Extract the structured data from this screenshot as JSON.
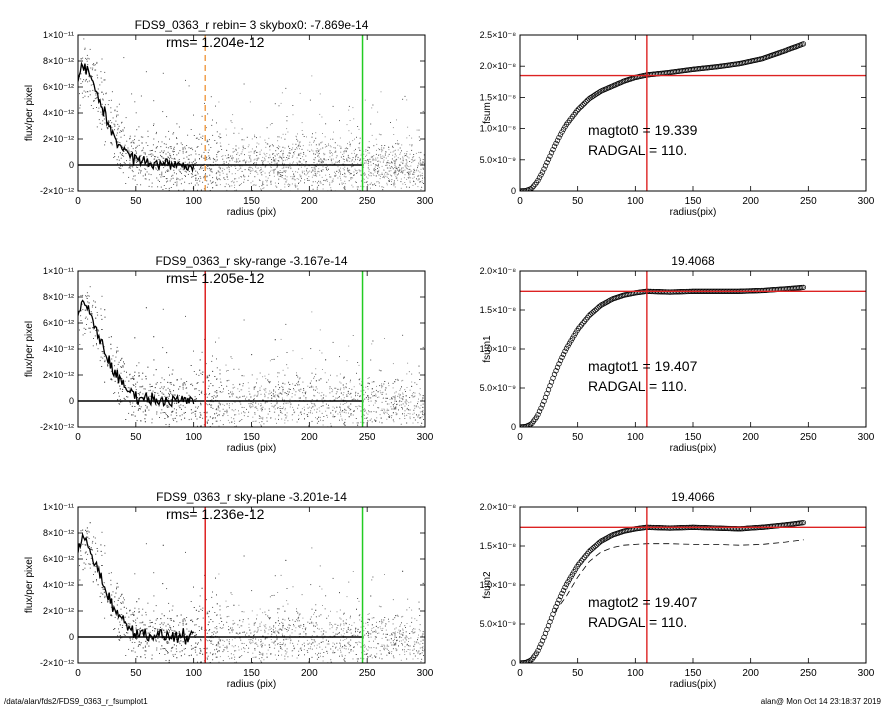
{
  "footer": {
    "left": "/data/alan/fds2/FDS9_0363_r_fsumplot1",
    "right": "alan@  Mon Oct 14 23:18:37 2019"
  },
  "colors": {
    "orange": "#f0a050",
    "green": "#22cc22",
    "red": "#dd2222",
    "scatter": "#555555",
    "scatter_light": "#999999",
    "profile": "#000000"
  },
  "chart_data": [
    {
      "id": "profile1",
      "type": "scatter",
      "title": "FDS9_0363_r rebin= 3    skybox0: -7.869e-14",
      "annotation": "rms= 1.204e-12",
      "xlabel": "radius (pix)",
      "ylabel": "flux/per pixel",
      "xlim": [
        0,
        300
      ],
      "ylim": [
        -2e-12,
        1e-11
      ],
      "xticks": [
        "0",
        "50",
        "100",
        "150",
        "200",
        "250",
        "300"
      ],
      "yticks": [
        "-2×10⁻¹²",
        "0",
        "2×10⁻¹²",
        "4×10⁻¹²",
        "6×10⁻¹²",
        "8×10⁻¹²",
        "1×10⁻¹¹"
      ],
      "vlines": [
        {
          "x": 110,
          "color": "orange",
          "style": "dashed"
        },
        {
          "x": 246,
          "color": "green",
          "style": "solid"
        }
      ],
      "hline": 0,
      "profile_x": [
        0,
        3,
        6,
        10,
        15,
        20,
        25,
        30,
        35,
        40,
        45,
        50,
        60,
        70,
        80,
        90,
        100,
        120,
        150,
        200,
        246
      ],
      "profile_y": [
        6.5e-12,
        7.5e-12,
        7.6e-12,
        6.8e-12,
        5.8e-12,
        4.6e-12,
        3.5e-12,
        2.5e-12,
        1.7e-12,
        1.1e-12,
        7e-13,
        4e-13,
        2e-13,
        1e-13,
        5e-14,
        0,
        0,
        0,
        0,
        0,
        0
      ]
    },
    {
      "id": "cum1",
      "type": "line",
      "title": "",
      "ylabel": "fsum",
      "xlabel": "radius(pix)",
      "xlim": [
        0,
        300
      ],
      "ylim": [
        0,
        2.5e-08
      ],
      "xticks": [
        "0",
        "50",
        "100",
        "150",
        "200",
        "250",
        "300"
      ],
      "yticks": [
        "0",
        "5.0×10⁻⁹",
        "1.0×10⁻⁸",
        "1.5×10⁻⁸",
        "2.0×10⁻⁸",
        "2.5×10⁻⁸"
      ],
      "annotations": [
        "magtot0 =  19.339",
        "RADGAL =    110."
      ],
      "vline": 110,
      "hline": 1.85e-08,
      "x": [
        0,
        5,
        10,
        15,
        20,
        25,
        30,
        35,
        40,
        50,
        60,
        70,
        80,
        90,
        100,
        110,
        130,
        150,
        170,
        190,
        210,
        230,
        246
      ],
      "y": [
        0,
        5e-11,
        4e-10,
        1.5e-09,
        3.2e-09,
        5.2e-09,
        7.2e-09,
        9e-09,
        1.06e-08,
        1.3e-08,
        1.48e-08,
        1.6e-08,
        1.68e-08,
        1.76e-08,
        1.82e-08,
        1.86e-08,
        1.9e-08,
        1.95e-08,
        1.99e-08,
        2.04e-08,
        2.12e-08,
        2.25e-08,
        2.36e-08
      ]
    },
    {
      "id": "profile2",
      "type": "scatter",
      "title": "FDS9_0363_r sky-range -3.167e-14",
      "annotation": "rms= 1.205e-12",
      "xlabel": "radius (pix)",
      "ylabel": "flux/per pixel",
      "xlim": [
        0,
        300
      ],
      "ylim": [
        -2e-12,
        1e-11
      ],
      "xticks": [
        "0",
        "50",
        "100",
        "150",
        "200",
        "250",
        "300"
      ],
      "yticks": [
        "-2×10⁻¹²",
        "0",
        "2×10⁻¹²",
        "4×10⁻¹²",
        "6×10⁻¹²",
        "8×10⁻¹²",
        "1×10⁻¹¹"
      ],
      "vlines": [
        {
          "x": 110,
          "color": "red",
          "style": "solid"
        },
        {
          "x": 246,
          "color": "green",
          "style": "solid"
        }
      ],
      "hline": 0,
      "profile_x": [
        0,
        3,
        6,
        10,
        15,
        20,
        25,
        30,
        35,
        40,
        45,
        50,
        60,
        70,
        80,
        90,
        100,
        120,
        150,
        200,
        246
      ],
      "profile_y": [
        6.5e-12,
        7.4e-12,
        7.5e-12,
        6.7e-12,
        5.7e-12,
        4.5e-12,
        3.4e-12,
        2.5e-12,
        1.7e-12,
        1.1e-12,
        7e-13,
        4e-13,
        2e-13,
        1e-13,
        5e-14,
        0,
        0,
        0,
        0,
        0,
        0
      ]
    },
    {
      "id": "cum2",
      "type": "line",
      "title": "19.4068",
      "ylabel": "fsum1",
      "xlabel": "radius(pix)",
      "xlim": [
        0,
        300
      ],
      "ylim": [
        0,
        2e-08
      ],
      "xticks": [
        "0",
        "50",
        "100",
        "150",
        "200",
        "250",
        "300"
      ],
      "yticks": [
        "0",
        "5.0×10⁻⁹",
        "1.0×10⁻⁸",
        "1.5×10⁻⁸",
        "2.0×10⁻⁸"
      ],
      "annotations": [
        "magtot1 =  19.407",
        "RADGAL =    110."
      ],
      "vline": 110,
      "hline": 1.74e-08,
      "x": [
        0,
        5,
        10,
        15,
        20,
        25,
        30,
        35,
        40,
        50,
        60,
        70,
        80,
        90,
        100,
        110,
        130,
        150,
        170,
        190,
        210,
        230,
        246
      ],
      "y": [
        0,
        5e-11,
        4e-10,
        1.4e-09,
        3e-09,
        4.9e-09,
        6.8e-09,
        8.5e-09,
        1e-08,
        1.25e-08,
        1.43e-08,
        1.56e-08,
        1.64e-08,
        1.69e-08,
        1.72e-08,
        1.74e-08,
        1.73e-08,
        1.74e-08,
        1.74e-08,
        1.74e-08,
        1.75e-08,
        1.77e-08,
        1.79e-08
      ]
    },
    {
      "id": "profile3",
      "type": "scatter",
      "title": "FDS9_0363_r sky-plane -3.201e-14",
      "annotation": "rms= 1.236e-12",
      "xlabel": "radius (pix)",
      "ylabel": "flux/per pixel",
      "xlim": [
        0,
        300
      ],
      "ylim": [
        -2e-12,
        1e-11
      ],
      "xticks": [
        "0",
        "50",
        "100",
        "150",
        "200",
        "250",
        "300"
      ],
      "yticks": [
        "-2×10⁻¹²",
        "0",
        "2×10⁻¹²",
        "4×10⁻¹²",
        "6×10⁻¹²",
        "8×10⁻¹²",
        "1×10⁻¹¹"
      ],
      "vlines": [
        {
          "x": 110,
          "color": "red",
          "style": "solid"
        },
        {
          "x": 246,
          "color": "green",
          "style": "solid"
        }
      ],
      "hline": 0,
      "profile_x": [
        0,
        3,
        6,
        10,
        15,
        20,
        25,
        30,
        35,
        40,
        45,
        50,
        60,
        70,
        80,
        90,
        100,
        120,
        150,
        200,
        246
      ],
      "profile_y": [
        6.5e-12,
        7.5e-12,
        7.6e-12,
        6.7e-12,
        5.7e-12,
        4.5e-12,
        3.4e-12,
        2.5e-12,
        1.7e-12,
        1.1e-12,
        7e-13,
        4e-13,
        2e-13,
        1e-13,
        5e-14,
        0,
        0,
        0,
        0,
        0,
        0
      ]
    },
    {
      "id": "cum3",
      "type": "line",
      "title": "19.4066",
      "ylabel": "fsum2",
      "xlabel": "radius(pix)",
      "xlim": [
        0,
        300
      ],
      "ylim": [
        0,
        2e-08
      ],
      "xticks": [
        "0",
        "50",
        "100",
        "150",
        "200",
        "250",
        "300"
      ],
      "yticks": [
        "0",
        "5.0×10⁻⁹",
        "1.0×10⁻⁸",
        "1.5×10⁻⁸",
        "2.0×10⁻⁸"
      ],
      "annotations": [
        "magtot2 =  19.407",
        "RADGAL =    110."
      ],
      "vline": 110,
      "hline": 1.74e-08,
      "x": [
        0,
        5,
        10,
        15,
        20,
        25,
        30,
        35,
        40,
        50,
        60,
        70,
        80,
        90,
        100,
        110,
        130,
        150,
        170,
        190,
        210,
        230,
        246
      ],
      "y": [
        0,
        5e-11,
        4e-10,
        1.4e-09,
        3e-09,
        4.9e-09,
        6.8e-09,
        8.5e-09,
        1e-08,
        1.25e-08,
        1.43e-08,
        1.56e-08,
        1.64e-08,
        1.69e-08,
        1.72e-08,
        1.74e-08,
        1.73e-08,
        1.74e-08,
        1.73e-08,
        1.72e-08,
        1.74e-08,
        1.77e-08,
        1.8e-08
      ],
      "dashed_x": [
        30,
        40,
        50,
        60,
        70,
        80,
        90,
        100,
        110,
        130,
        150,
        170,
        190,
        210,
        230,
        246
      ],
      "dashed_y": [
        6.5e-09,
        8.5e-09,
        1.1e-08,
        1.3e-08,
        1.42e-08,
        1.48e-08,
        1.51e-08,
        1.52e-08,
        1.53e-08,
        1.53e-08,
        1.52e-08,
        1.52e-08,
        1.51e-08,
        1.52e-08,
        1.55e-08,
        1.58e-08
      ]
    }
  ]
}
